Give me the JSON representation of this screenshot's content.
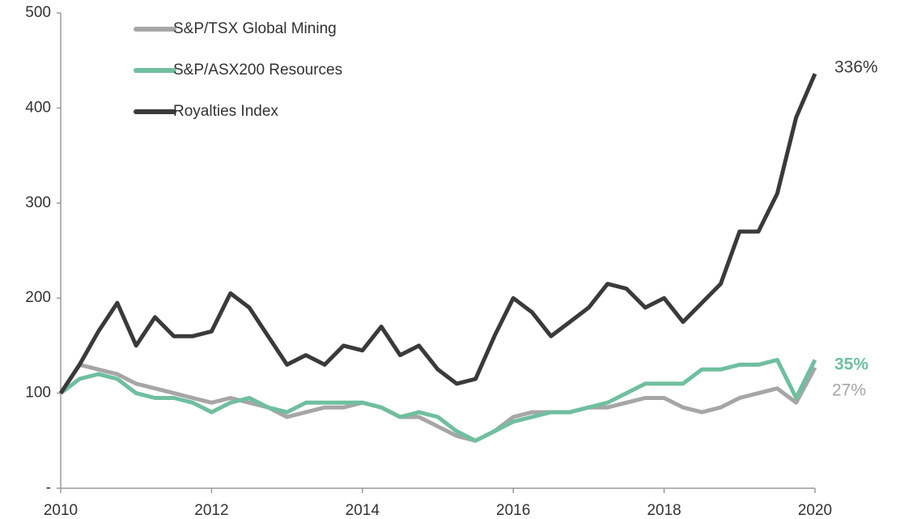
{
  "chart_data": {
    "type": "line",
    "x": [
      2010,
      2010.25,
      2010.5,
      2010.75,
      2011,
      2011.25,
      2011.5,
      2011.75,
      2012,
      2012.25,
      2012.5,
      2012.75,
      2013,
      2013.25,
      2013.5,
      2013.75,
      2014,
      2014.25,
      2014.5,
      2014.75,
      2015,
      2015.25,
      2015.5,
      2015.75,
      2016,
      2016.25,
      2016.5,
      2016.75,
      2017,
      2017.25,
      2017.5,
      2017.75,
      2018,
      2018.25,
      2018.5,
      2018.75,
      2019,
      2019.25,
      2019.5,
      2019.75,
      2020
    ],
    "series": [
      {
        "name": "S&P/TSX Global Mining",
        "color": "#a6a6a6",
        "values": [
          100,
          130,
          125,
          120,
          110,
          105,
          100,
          95,
          90,
          95,
          90,
          85,
          75,
          80,
          85,
          85,
          90,
          85,
          75,
          75,
          65,
          55,
          50,
          60,
          75,
          80,
          80,
          80,
          85,
          85,
          90,
          95,
          95,
          85,
          80,
          85,
          95,
          100,
          105,
          90,
          127
        ]
      },
      {
        "name": "S&P/ASX200 Resources",
        "color": "#6fbf9f",
        "values": [
          100,
          115,
          120,
          115,
          100,
          95,
          95,
          90,
          80,
          90,
          95,
          85,
          80,
          90,
          90,
          90,
          90,
          85,
          75,
          80,
          75,
          60,
          50,
          60,
          70,
          75,
          80,
          80,
          85,
          90,
          100,
          110,
          110,
          110,
          125,
          125,
          130,
          130,
          135,
          95,
          135
        ]
      },
      {
        "name": "Royalties Index",
        "color": "#3a3a3a",
        "values": [
          100,
          130,
          165,
          195,
          150,
          180,
          160,
          160,
          165,
          205,
          190,
          160,
          130,
          140,
          130,
          150,
          145,
          170,
          140,
          150,
          125,
          110,
          115,
          160,
          200,
          185,
          160,
          175,
          190,
          215,
          210,
          190,
          200,
          175,
          195,
          215,
          270,
          270,
          310,
          390,
          436
        ]
      }
    ],
    "annotations": [
      {
        "text": "336%",
        "color": "#3a3a3a"
      },
      {
        "text": "35%",
        "color": "#6fbf9f"
      },
      {
        "text": "27%",
        "color": "#a6a6a6"
      }
    ],
    "xlim": [
      2010,
      2020
    ],
    "xticks": [
      2010,
      2012,
      2014,
      2016,
      2018,
      2020
    ],
    "ylim": [
      0,
      500
    ],
    "yticks": [
      {
        "value": 0,
        "label": "-"
      },
      100,
      200,
      300,
      400,
      500
    ],
    "legend": "upper left"
  }
}
